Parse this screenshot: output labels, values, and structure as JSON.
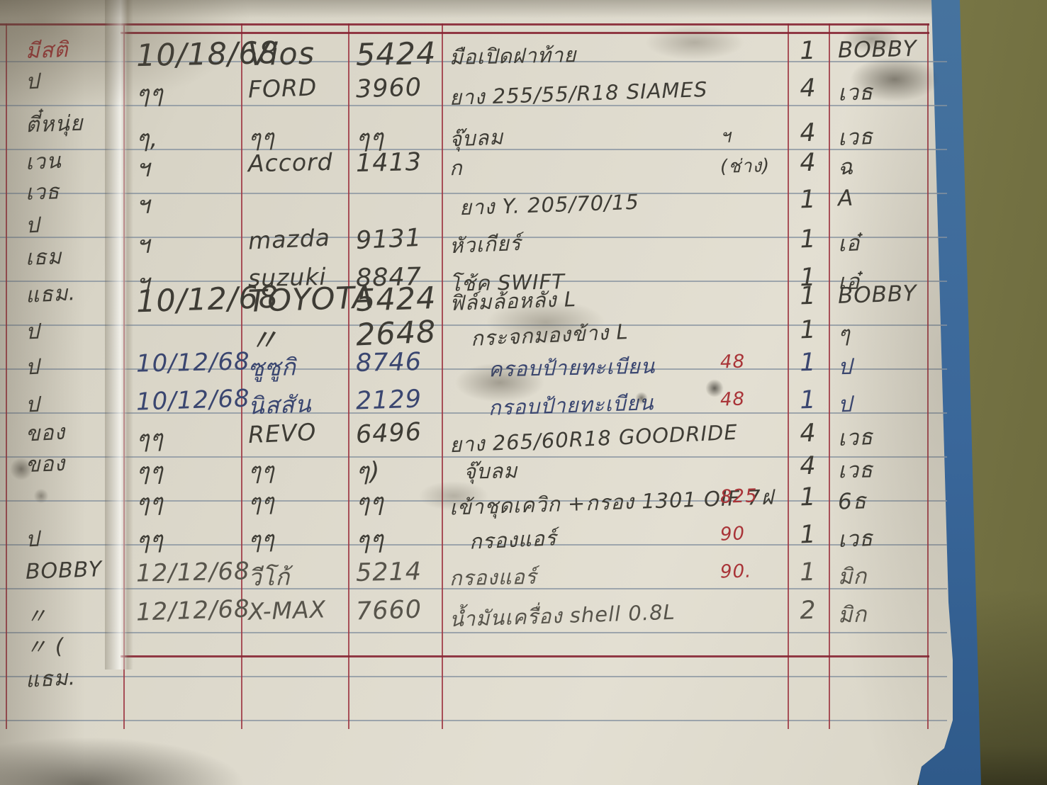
{
  "document": {
    "kind": "handwritten-ledger-page",
    "description_visible": "Ruled notebook page of an auto-parts/service log with red column rules",
    "colors": {
      "paper": "#dedacd",
      "rule_blue": "#86929f",
      "rule_red": "#9e3642",
      "ink_black": "#3e3c35",
      "ink_blue": "#3a4670",
      "ink_gray": "#5a564b",
      "ink_red": "#a93438",
      "cover_blue": "#3a679a",
      "background_olive": "#85834f"
    }
  },
  "margin_notes": [
    {
      "text": "มีสติ",
      "color": "red"
    },
    {
      "text": "ป"
    },
    {
      "text": "ตี๋หนุ่ย"
    },
    {
      "text": "เวน"
    },
    {
      "text": "เวธ"
    },
    {
      "text": "ป"
    },
    {
      "text": "เธม"
    },
    {
      "text": "แธม."
    },
    {
      "text": "ป"
    },
    {
      "text": "ป"
    },
    {
      "text": "ป"
    },
    {
      "text": "ของ"
    },
    {
      "text": "ของ"
    },
    {
      "text": "ป"
    },
    {
      "text": "BOBBY"
    },
    {
      "text": "〃"
    },
    {
      "text": "〃 ("
    },
    {
      "text": "แธม."
    }
  ],
  "rows": [
    {
      "date": "10/18/68",
      "model": "Vios",
      "number": "5424",
      "desc": "มือเปิดฝาท้าย",
      "note": "",
      "qty": "1",
      "name": "BOBBY",
      "ink": "black"
    },
    {
      "date": "ๆๆ",
      "model": "FORD",
      "number": "3960",
      "desc": "ยาง 255/55/R18 SIAMES",
      "note": "",
      "qty": "4",
      "name": "เวธ",
      "ink": "black"
    },
    {
      "date": "ๆ,",
      "model": "ๆๆ",
      "number": "ๆๆ",
      "desc": "จุ๊บลม",
      "note": "ฯ",
      "note_color": "black",
      "qty": "4",
      "name": "เวธ",
      "ink": "black"
    },
    {
      "date": "ฯ",
      "model": "Accord",
      "number": "1413",
      "desc": "ก",
      "note": "(ช่าง)",
      "note_color": "black",
      "qty": "4",
      "name": "ฉ",
      "ink": "black"
    },
    {
      "date": "ฯ",
      "model": "",
      "number": "",
      "desc": "ยาง Y. 205/70/15",
      "note": "",
      "qty": "1",
      "name": "A",
      "ink": "black"
    },
    {
      "date": "ฯ",
      "model": "mazda",
      "number": "9131",
      "desc": "หัวเกียร์",
      "note": "",
      "qty": "1",
      "name": "เอ๋",
      "ink": "black"
    },
    {
      "date": "ฯ",
      "model": "suzuki",
      "number": "8847",
      "desc": "โช้ค SWIFT",
      "note": "",
      "qty": "1",
      "name": "เอ๋",
      "ink": "black"
    },
    {
      "date": "10/12/68",
      "model": "TOYOTA",
      "number": "5424",
      "desc": "ฟิล์มล้อหลัง L",
      "note": "",
      "qty": "1",
      "name": "BOBBY",
      "ink": "black"
    },
    {
      "date": "",
      "model": "〃",
      "number": "2648",
      "desc": "กระจกมองข้าง L",
      "note": "",
      "qty": "1",
      "name": "ๆ",
      "ink": "black"
    },
    {
      "date": "10/12/68",
      "model": "ซูซูกิ",
      "number": "8746",
      "desc": "ครอบป้ายทะเบียน",
      "note": "48",
      "note_color": "red",
      "qty": "1",
      "name": "ป",
      "ink": "blue"
    },
    {
      "date": "10/12/68",
      "model": "นิสสัน",
      "number": "2129",
      "desc": "กรอบป้ายทะเบียน",
      "note": "48",
      "note_color": "red",
      "qty": "1",
      "name": "ป",
      "ink": "blue"
    },
    {
      "date": "ๆๆ",
      "model": "REVO",
      "number": "6496",
      "desc": "ยาง 265/60R18 GOODRIDE",
      "note": "",
      "qty": "4",
      "name": "เวธ",
      "ink": "black"
    },
    {
      "date": "ๆๆ",
      "model": "ๆๆ",
      "number": "ๆ)",
      "desc": "จุ๊บลม",
      "note": "",
      "qty": "4",
      "name": "เวธ",
      "ink": "black"
    },
    {
      "date": "ๆๆ",
      "model": "ๆๆ",
      "number": "ๆๆ",
      "desc": "เข้าชุดเควิก +กรอง 1301 OIF 7ฝ",
      "note": "825",
      "note_color": "red",
      "qty": "1",
      "name": "6ธ",
      "ink": "black"
    },
    {
      "date": "ๆๆ",
      "model": "ๆๆ",
      "number": "ๆๆ",
      "desc": "กรองแอร์",
      "note": "90",
      "note_color": "red",
      "qty": "1",
      "name": "เวธ",
      "ink": "black"
    },
    {
      "date": "12/12/68",
      "model": "วีโก้",
      "number": "5214",
      "desc": "กรองแอร์",
      "note": "90.",
      "note_color": "red",
      "qty": "1",
      "name": "มิก",
      "ink": "gray"
    },
    {
      "date": "12/12/68",
      "model": "X-MAX",
      "number": "7660",
      "desc": "น้ำมันเครื่อง shell 0.8L",
      "note": "",
      "qty": "2",
      "name": "มิก",
      "ink": "gray"
    }
  ]
}
